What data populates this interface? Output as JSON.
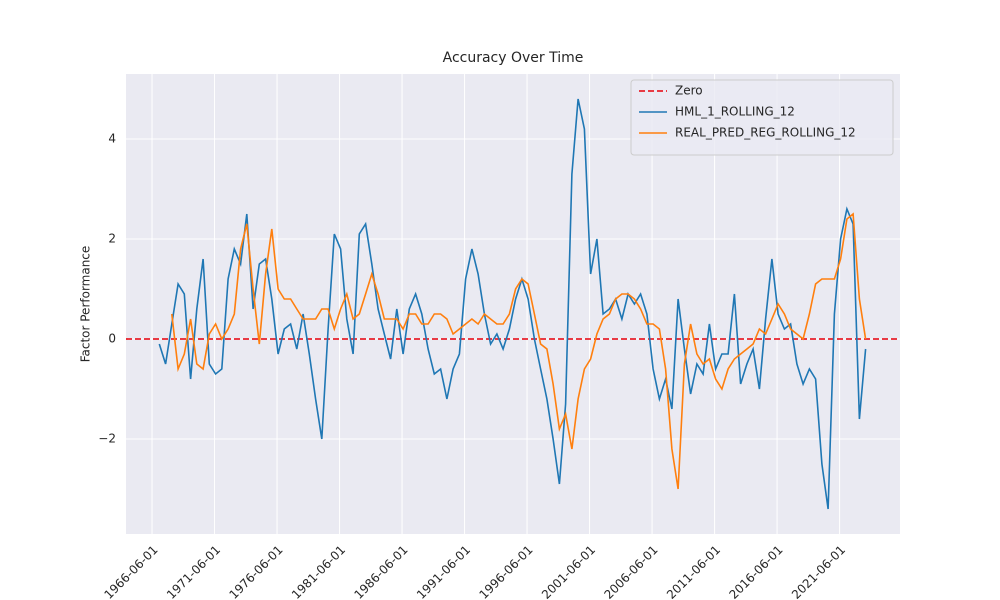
{
  "chart_data": {
    "type": "line",
    "title": "Accuracy Over Time",
    "y_label": "Factor Performance",
    "x": [
      "1967-01-01",
      "1967-07-01",
      "1968-01-01",
      "1968-07-01",
      "1969-01-01",
      "1969-07-01",
      "1970-01-01",
      "1970-07-01",
      "1971-01-01",
      "1971-07-01",
      "1972-01-01",
      "1972-07-01",
      "1973-01-01",
      "1973-07-01",
      "1974-01-01",
      "1974-07-01",
      "1975-01-01",
      "1975-07-01",
      "1976-01-01",
      "1976-07-01",
      "1977-01-01",
      "1977-07-01",
      "1978-01-01",
      "1978-07-01",
      "1979-01-01",
      "1979-07-01",
      "1980-01-01",
      "1980-07-01",
      "1981-01-01",
      "1981-07-01",
      "1982-01-01",
      "1982-07-01",
      "1983-01-01",
      "1983-07-01",
      "1984-01-01",
      "1984-07-01",
      "1985-01-01",
      "1985-07-01",
      "1986-01-01",
      "1986-07-01",
      "1987-01-01",
      "1987-07-01",
      "1988-01-01",
      "1988-07-01",
      "1989-01-01",
      "1989-07-01",
      "1990-01-01",
      "1990-07-01",
      "1991-01-01",
      "1991-07-01",
      "1992-01-01",
      "1992-07-01",
      "1993-01-01",
      "1993-07-01",
      "1994-01-01",
      "1994-07-01",
      "1995-01-01",
      "1995-07-01",
      "1996-01-01",
      "1996-07-01",
      "1997-01-01",
      "1997-07-01",
      "1998-01-01",
      "1998-07-01",
      "1999-01-01",
      "1999-07-01",
      "2000-01-01",
      "2000-07-01",
      "2001-01-01",
      "2001-07-01",
      "2002-01-01",
      "2002-07-01",
      "2003-01-01",
      "2003-07-01",
      "2004-01-01",
      "2004-07-01",
      "2005-01-01",
      "2005-07-01",
      "2006-01-01",
      "2006-07-01",
      "2007-01-01",
      "2007-07-01",
      "2008-01-01",
      "2008-07-01",
      "2009-01-01",
      "2009-07-01",
      "2010-01-01",
      "2010-07-01",
      "2011-01-01",
      "2011-07-01",
      "2012-01-01",
      "2012-07-01",
      "2013-01-01",
      "2013-07-01",
      "2014-01-01",
      "2014-07-01",
      "2015-01-01",
      "2015-07-01",
      "2016-01-01",
      "2016-07-01",
      "2017-01-01",
      "2017-07-01",
      "2018-01-01",
      "2018-07-01",
      "2019-01-01",
      "2019-07-01",
      "2020-01-01",
      "2020-07-01",
      "2021-01-01",
      "2021-07-01",
      "2022-01-01",
      "2022-07-01",
      "2023-01-01",
      "2023-07-01"
    ],
    "reference_line": {
      "name": "Zero",
      "value": 0,
      "color": "#e8000b",
      "dashed": true
    },
    "series": [
      {
        "name": "HML_1_ROLLING_12",
        "color": "#1f77b4",
        "values": [
          -0.1,
          -0.5,
          0.3,
          1.1,
          0.9,
          -0.8,
          0.6,
          1.6,
          -0.5,
          -0.7,
          -0.6,
          1.2,
          1.8,
          1.5,
          2.5,
          0.6,
          1.5,
          1.6,
          0.8,
          -0.3,
          0.2,
          0.3,
          -0.2,
          0.5,
          -0.3,
          -1.2,
          -2.0,
          0.2,
          2.1,
          1.8,
          0.4,
          -0.3,
          2.1,
          2.3,
          1.5,
          0.6,
          0.1,
          -0.4,
          0.6,
          -0.3,
          0.6,
          0.9,
          0.5,
          -0.2,
          -0.7,
          -0.6,
          -1.2,
          -0.6,
          -0.3,
          1.2,
          1.8,
          1.3,
          0.5,
          -0.1,
          0.1,
          -0.2,
          0.2,
          0.8,
          1.2,
          0.8,
          0.0,
          -0.6,
          -1.2,
          -2.0,
          -2.9,
          -1.3,
          3.3,
          4.8,
          4.2,
          1.3,
          2.0,
          0.5,
          0.6,
          0.8,
          0.4,
          0.9,
          0.7,
          0.9,
          0.5,
          -0.6,
          -1.2,
          -0.8,
          -1.4,
          0.8,
          -0.2,
          -1.1,
          -0.5,
          -0.7,
          0.3,
          -0.6,
          -0.3,
          -0.3,
          0.9,
          -0.9,
          -0.5,
          -0.2,
          -1.0,
          0.4,
          1.6,
          0.5,
          0.2,
          0.3,
          -0.5,
          -0.9,
          -0.6,
          -0.8,
          -2.5,
          -3.4,
          0.5,
          2.0,
          2.6,
          2.3,
          -1.6,
          -0.2
        ]
      },
      {
        "name": "REAL_PRED_REG_ROLLING_12",
        "color": "#ff7f0e",
        "values": [
          null,
          null,
          0.5,
          -0.6,
          -0.3,
          0.4,
          -0.5,
          -0.6,
          0.1,
          0.3,
          0.0,
          0.2,
          0.5,
          1.8,
          2.3,
          1.0,
          -0.1,
          1.3,
          2.2,
          1.0,
          0.8,
          0.8,
          0.6,
          0.4,
          0.4,
          0.4,
          0.6,
          0.6,
          0.2,
          0.6,
          0.9,
          0.4,
          0.5,
          0.9,
          1.3,
          0.9,
          0.4,
          0.4,
          0.4,
          0.2,
          0.5,
          0.5,
          0.3,
          0.3,
          0.5,
          0.5,
          0.4,
          0.1,
          0.2,
          0.3,
          0.4,
          0.3,
          0.5,
          0.4,
          0.3,
          0.3,
          0.5,
          1.0,
          1.2,
          1.1,
          0.5,
          -0.1,
          -0.2,
          -0.9,
          -1.8,
          -1.5,
          -2.2,
          -1.2,
          -0.6,
          -0.4,
          0.1,
          0.4,
          0.5,
          0.8,
          0.9,
          0.9,
          0.8,
          0.6,
          0.3,
          0.3,
          0.2,
          -0.6,
          -2.2,
          -3.0,
          -0.5,
          0.3,
          -0.3,
          -0.5,
          -0.4,
          -0.8,
          -1.0,
          -0.6,
          -0.4,
          -0.3,
          -0.2,
          -0.1,
          0.2,
          0.1,
          0.4,
          0.7,
          0.5,
          0.2,
          0.1,
          0.0,
          0.5,
          1.1,
          1.2,
          1.2,
          1.2,
          1.6,
          2.4,
          2.5,
          0.8,
          0.0
        ]
      }
    ],
    "xlim": [
      "1964-05-01",
      "2026-04-01"
    ],
    "xticks": [
      "1966-06-01",
      "1971-06-01",
      "1976-06-01",
      "1981-06-01",
      "1986-06-01",
      "1991-06-01",
      "1996-06-01",
      "2001-06-01",
      "2006-06-01",
      "2011-06-01",
      "2016-06-01",
      "2021-06-01"
    ],
    "ylim": [
      -3.9,
      5.3
    ],
    "yticks": [
      {
        "value": -2,
        "label": "−2"
      },
      0,
      2,
      4
    ],
    "grid": true,
    "legend": "upper right"
  }
}
